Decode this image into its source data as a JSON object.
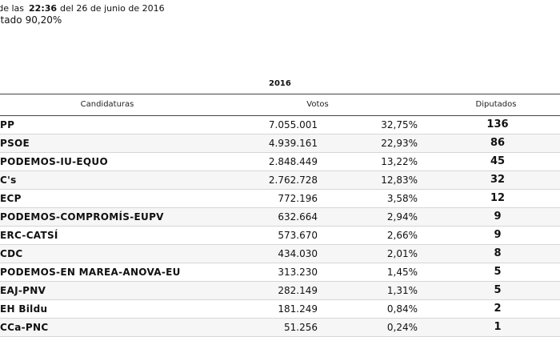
{
  "header": {
    "prefix": "s de las",
    "time": "22:36",
    "date_text": "del 26 de junio de 2016",
    "counted_label": "rutado",
    "counted_value": "90,20%"
  },
  "table": {
    "year": "2016",
    "columns": {
      "candidatures": "Candidaturas",
      "votes": "Votos",
      "seats": "Diputados"
    },
    "rows": [
      {
        "name": "PP",
        "votes": "7.055.001",
        "pct": "32,75%",
        "seats": "136"
      },
      {
        "name": "PSOE",
        "votes": "4.939.161",
        "pct": "22,93%",
        "seats": "86"
      },
      {
        "name": "PODEMOS-IU-EQUO",
        "votes": "2.848.449",
        "pct": "13,22%",
        "seats": "45"
      },
      {
        "name": "C's",
        "votes": "2.762.728",
        "pct": "12,83%",
        "seats": "32"
      },
      {
        "name": "ECP",
        "votes": "772.196",
        "pct": "3,58%",
        "seats": "12"
      },
      {
        "name": "PODEMOS-COMPROMÍS-EUPV",
        "votes": "632.664",
        "pct": "2,94%",
        "seats": "9"
      },
      {
        "name": "ERC-CATSÍ",
        "votes": "573.670",
        "pct": "2,66%",
        "seats": "9"
      },
      {
        "name": "CDC",
        "votes": "434.030",
        "pct": "2,01%",
        "seats": "8"
      },
      {
        "name": "PODEMOS-EN MAREA-ANOVA-EU",
        "votes": "313.230",
        "pct": "1,45%",
        "seats": "5"
      },
      {
        "name": "EAJ-PNV",
        "votes": "282.149",
        "pct": "1,31%",
        "seats": "5"
      },
      {
        "name": "EH Bildu",
        "votes": "181.249",
        "pct": "0,84%",
        "seats": "2"
      },
      {
        "name": "CCa-PNC",
        "votes": "51.256",
        "pct": "0,24%",
        "seats": "1"
      }
    ]
  }
}
